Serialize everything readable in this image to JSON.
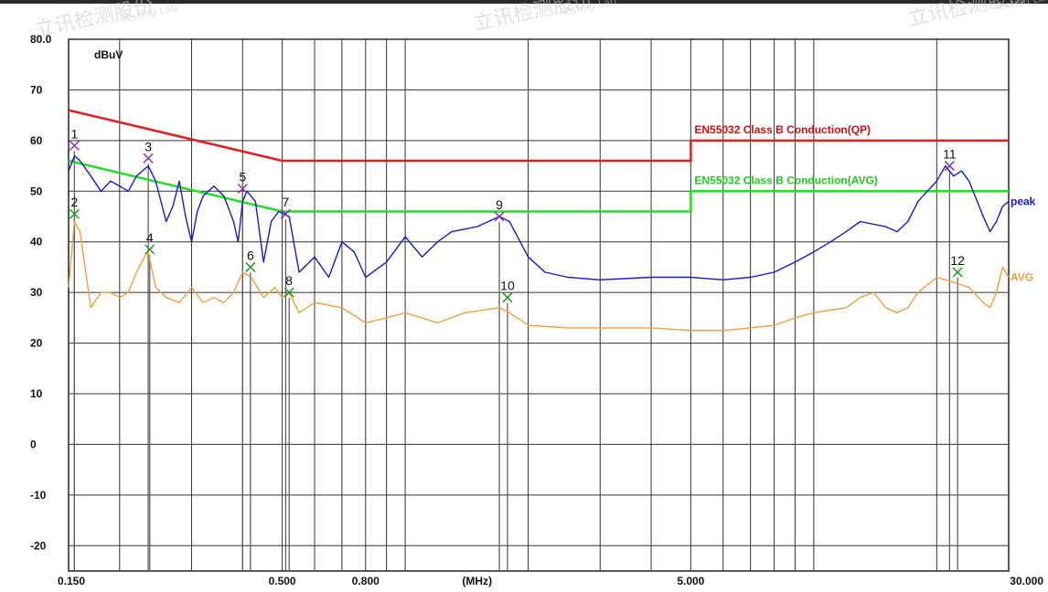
{
  "watermark": {
    "text": "立讯检测股份",
    "subtext": "Testing Lab"
  },
  "chart_data": {
    "type": "line",
    "ylabel": "dBuV",
    "xunit": "(MHz)",
    "xscale": "log",
    "xlim": [
      0.15,
      30
    ],
    "ylim": [
      -25,
      80
    ],
    "y_ticks": [
      "80.0",
      "70",
      "60",
      "50",
      "40",
      "30",
      "20",
      "10",
      "0",
      "-10",
      "-20"
    ],
    "y_tick_values": [
      80,
      70,
      60,
      50,
      40,
      30,
      20,
      10,
      0,
      -10,
      -20
    ],
    "x_ticks": [
      "0.150",
      "0.500",
      "0.800",
      "(MHz)",
      "5.000",
      "30.000"
    ],
    "x_tick_values": [
      0.15,
      0.5,
      0.8,
      1.5,
      5,
      30
    ],
    "grid": true,
    "limits": [
      {
        "name": "EN55032 Class B Conduction(QP)",
        "color": "#e02020",
        "points": [
          [
            0.15,
            66
          ],
          [
            0.5,
            56
          ],
          [
            5,
            56
          ],
          [
            5,
            60
          ],
          [
            30,
            60
          ]
        ]
      },
      {
        "name": "EN55032 Class B Conduction(AVG)",
        "color": "#22dd22",
        "points": [
          [
            0.15,
            56
          ],
          [
            0.5,
            46
          ],
          [
            5,
            46
          ],
          [
            5,
            50
          ],
          [
            30,
            50
          ]
        ]
      }
    ],
    "series": [
      {
        "name": "peak",
        "color": "#1a1acc",
        "points": [
          [
            0.15,
            54
          ],
          [
            0.155,
            57
          ],
          [
            0.16,
            56
          ],
          [
            0.17,
            53
          ],
          [
            0.18,
            50
          ],
          [
            0.19,
            52
          ],
          [
            0.2,
            51
          ],
          [
            0.21,
            50
          ],
          [
            0.22,
            53
          ],
          [
            0.235,
            55
          ],
          [
            0.245,
            52
          ],
          [
            0.26,
            44
          ],
          [
            0.27,
            47
          ],
          [
            0.28,
            52
          ],
          [
            0.29,
            45
          ],
          [
            0.3,
            40
          ],
          [
            0.31,
            46
          ],
          [
            0.32,
            49
          ],
          [
            0.34,
            51
          ],
          [
            0.36,
            49
          ],
          [
            0.38,
            44
          ],
          [
            0.39,
            40
          ],
          [
            0.4,
            48
          ],
          [
            0.41,
            50
          ],
          [
            0.43,
            48
          ],
          [
            0.45,
            36
          ],
          [
            0.47,
            44
          ],
          [
            0.49,
            46
          ],
          [
            0.52,
            45
          ],
          [
            0.55,
            34
          ],
          [
            0.6,
            37
          ],
          [
            0.65,
            33
          ],
          [
            0.7,
            40
          ],
          [
            0.75,
            38
          ],
          [
            0.8,
            33
          ],
          [
            0.9,
            36
          ],
          [
            1.0,
            41
          ],
          [
            1.1,
            37
          ],
          [
            1.2,
            40
          ],
          [
            1.3,
            42
          ],
          [
            1.5,
            43
          ],
          [
            1.7,
            45
          ],
          [
            1.8,
            44
          ],
          [
            2.0,
            37
          ],
          [
            2.2,
            34
          ],
          [
            2.5,
            33
          ],
          [
            3,
            32.5
          ],
          [
            4,
            33
          ],
          [
            5,
            33
          ],
          [
            6,
            32.5
          ],
          [
            7,
            33
          ],
          [
            8,
            34
          ],
          [
            9,
            36
          ],
          [
            10,
            38
          ],
          [
            11,
            40
          ],
          [
            12,
            42
          ],
          [
            13,
            44
          ],
          [
            15,
            43
          ],
          [
            16,
            42
          ],
          [
            17,
            44
          ],
          [
            18,
            48
          ],
          [
            20,
            52
          ],
          [
            21,
            55
          ],
          [
            22,
            53
          ],
          [
            23,
            54
          ],
          [
            24,
            52
          ],
          [
            26,
            45
          ],
          [
            27,
            42
          ],
          [
            28,
            44
          ],
          [
            29,
            47
          ],
          [
            30,
            48
          ]
        ]
      },
      {
        "name": "AVG",
        "color": "#f0a040",
        "points": [
          [
            0.15,
            31
          ],
          [
            0.155,
            44
          ],
          [
            0.16,
            42
          ],
          [
            0.17,
            27
          ],
          [
            0.18,
            30
          ],
          [
            0.19,
            30
          ],
          [
            0.2,
            29
          ],
          [
            0.21,
            30
          ],
          [
            0.22,
            34
          ],
          [
            0.23,
            37
          ],
          [
            0.235,
            38
          ],
          [
            0.245,
            31
          ],
          [
            0.26,
            29
          ],
          [
            0.28,
            28
          ],
          [
            0.3,
            31
          ],
          [
            0.32,
            28
          ],
          [
            0.34,
            29
          ],
          [
            0.36,
            28
          ],
          [
            0.38,
            30
          ],
          [
            0.4,
            34
          ],
          [
            0.42,
            33
          ],
          [
            0.45,
            29
          ],
          [
            0.48,
            31
          ],
          [
            0.5,
            29
          ],
          [
            0.52,
            30
          ],
          [
            0.55,
            26
          ],
          [
            0.6,
            28
          ],
          [
            0.7,
            27
          ],
          [
            0.8,
            24
          ],
          [
            0.9,
            25
          ],
          [
            1.0,
            26
          ],
          [
            1.2,
            24
          ],
          [
            1.4,
            26
          ],
          [
            1.7,
            27
          ],
          [
            1.8,
            26
          ],
          [
            2.0,
            23.5
          ],
          [
            2.5,
            23
          ],
          [
            3,
            23
          ],
          [
            4,
            23
          ],
          [
            5,
            22.5
          ],
          [
            6,
            22.5
          ],
          [
            7,
            23
          ],
          [
            8,
            23.5
          ],
          [
            9,
            25
          ],
          [
            10,
            26
          ],
          [
            11,
            26.5
          ],
          [
            12,
            27
          ],
          [
            13,
            29
          ],
          [
            14,
            30
          ],
          [
            15,
            27
          ],
          [
            16,
            26
          ],
          [
            17,
            27
          ],
          [
            18,
            30
          ],
          [
            20,
            33
          ],
          [
            22,
            32
          ],
          [
            24,
            31
          ],
          [
            26,
            28
          ],
          [
            27,
            27
          ],
          [
            28,
            30
          ],
          [
            29,
            35
          ],
          [
            30,
            33
          ]
        ]
      }
    ],
    "markers": [
      {
        "num": "1",
        "freq": 0.155,
        "level": 59.0,
        "color": "#8833aa"
      },
      {
        "num": "2",
        "freq": 0.155,
        "level": 45.5,
        "color": "#229922"
      },
      {
        "num": "3",
        "freq": 0.235,
        "level": 56.5,
        "color": "#8833aa"
      },
      {
        "num": "4",
        "freq": 0.237,
        "level": 38.5,
        "color": "#229922"
      },
      {
        "num": "5",
        "freq": 0.4,
        "level": 50.5,
        "color": "#8833aa"
      },
      {
        "num": "6",
        "freq": 0.418,
        "level": 35.0,
        "color": "#229922"
      },
      {
        "num": "7",
        "freq": 0.51,
        "level": 45.5,
        "color": "#8833aa"
      },
      {
        "num": "8",
        "freq": 0.52,
        "level": 30.0,
        "color": "#229922"
      },
      {
        "num": "9",
        "freq": 1.7,
        "level": 45.0,
        "color": "#8833aa"
      },
      {
        "num": "10",
        "freq": 1.78,
        "level": 29.0,
        "color": "#229922"
      },
      {
        "num": "11",
        "freq": 21.5,
        "level": 55.0,
        "color": "#8833aa"
      },
      {
        "num": "12",
        "freq": 22.5,
        "level": 34.0,
        "color": "#229922"
      }
    ]
  }
}
